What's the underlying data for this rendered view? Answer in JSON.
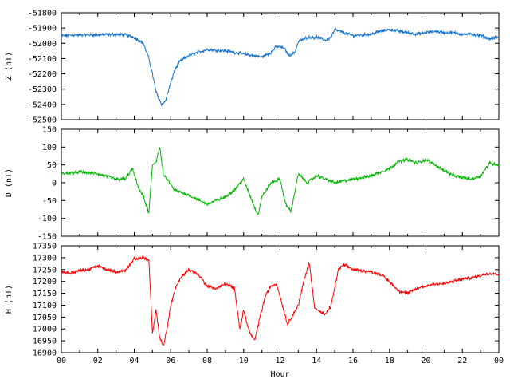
{
  "chart_data": [
    {
      "type": "line",
      "ylabel": "Z (nT)",
      "ylim": [
        -52500,
        -51800
      ],
      "yticks": [
        -51800,
        -51900,
        -52000,
        -52100,
        -52200,
        -52300,
        -52400,
        -52500
      ],
      "color": "#1874cd",
      "series": [
        {
          "x": [
            0,
            1,
            2,
            3,
            3.5,
            4,
            4.5,
            4.8,
            5.0,
            5.2,
            5.5,
            5.7,
            5.9,
            6.2,
            6.5,
            7,
            7.5,
            8,
            9,
            9.5,
            10,
            10.5,
            11,
            11.5,
            11.8,
            12.2,
            12.5,
            12.8,
            13,
            13.5,
            14,
            14.5,
            14.8,
            15,
            15.5,
            16,
            17,
            17.5,
            18,
            18.5,
            19,
            19.5,
            20,
            20.5,
            21,
            21.5,
            22,
            22.5,
            23,
            23.5,
            24
          ],
          "y": [
            -51950,
            -51945,
            -51945,
            -51940,
            -51945,
            -51960,
            -52000,
            -52100,
            -52200,
            -52320,
            -52400,
            -52380,
            -52300,
            -52180,
            -52120,
            -52080,
            -52060,
            -52040,
            -52050,
            -52060,
            -52070,
            -52080,
            -52090,
            -52060,
            -52020,
            -52030,
            -52080,
            -52060,
            -51990,
            -51960,
            -51960,
            -51980,
            -51960,
            -51910,
            -51930,
            -51950,
            -51940,
            -51920,
            -51910,
            -51920,
            -51930,
            -51940,
            -51930,
            -51920,
            -51930,
            -51930,
            -51940,
            -51940,
            -51950,
            -51970,
            -51960
          ]
        }
      ]
    },
    {
      "type": "line",
      "ylabel": "D (nT)",
      "ylim": [
        -150,
        150
      ],
      "yticks": [
        150,
        100,
        50,
        0,
        -50,
        -100,
        -150
      ],
      "color": "#00b400",
      "series": [
        {
          "x": [
            0,
            1,
            2,
            3,
            3.5,
            3.9,
            4.2,
            4.5,
            4.8,
            5.0,
            5.2,
            5.4,
            5.6,
            5.8,
            6.2,
            7,
            8,
            8.5,
            9,
            9.5,
            10,
            10.3,
            10.6,
            10.8,
            11,
            11.5,
            12,
            12.3,
            12.6,
            13,
            13.5,
            14,
            14.5,
            15,
            16,
            17,
            18,
            18.5,
            19,
            19.5,
            20,
            20.5,
            21,
            21.5,
            22,
            22.5,
            23,
            23.5,
            24
          ],
          "y": [
            25,
            30,
            25,
            10,
            10,
            40,
            -10,
            -40,
            -85,
            50,
            60,
            100,
            20,
            10,
            -20,
            -35,
            -60,
            -50,
            -40,
            -20,
            10,
            -30,
            -70,
            -90,
            -40,
            0,
            10,
            -60,
            -80,
            25,
            0,
            20,
            10,
            0,
            10,
            20,
            40,
            60,
            65,
            55,
            65,
            50,
            35,
            20,
            15,
            10,
            20,
            55,
            50
          ]
        }
      ]
    },
    {
      "type": "line",
      "ylabel": "H (nT)",
      "xlabel": "Hour",
      "ylim": [
        16900,
        17350
      ],
      "yticks": [
        17350,
        17300,
        17250,
        17200,
        17150,
        17100,
        17050,
        17000,
        16950,
        16900
      ],
      "color": "#ff0000",
      "xlim": [
        0,
        24
      ],
      "xticks": [
        "00",
        "02",
        "04",
        "06",
        "08",
        "10",
        "12",
        "14",
        "16",
        "18",
        "20",
        "22",
        "00"
      ],
      "series": [
        {
          "x": [
            0,
            0.5,
            1,
            1.5,
            2,
            2.5,
            3,
            3.5,
            4,
            4.5,
            4.8,
            5.0,
            5.2,
            5.4,
            5.6,
            5.8,
            6.0,
            6.3,
            6.6,
            7,
            7.5,
            8,
            8.5,
            9,
            9.5,
            9.8,
            10,
            10.3,
            10.6,
            10.9,
            11.2,
            11.5,
            11.8,
            12.1,
            12.4,
            12.7,
            13.0,
            13.3,
            13.6,
            13.9,
            14.2,
            14.5,
            14.8,
            15.2,
            15.5,
            16,
            17,
            17.5,
            18,
            18.5,
            19,
            19.5,
            20,
            20.5,
            21,
            21.5,
            22,
            22.5,
            23,
            23.5,
            24
          ],
          "y": [
            17240,
            17235,
            17245,
            17250,
            17265,
            17250,
            17240,
            17245,
            17295,
            17300,
            17290,
            16980,
            17080,
            16960,
            16930,
            17000,
            17100,
            17180,
            17220,
            17250,
            17230,
            17180,
            17170,
            17190,
            17170,
            17000,
            17080,
            16990,
            16950,
            17050,
            17140,
            17180,
            17190,
            17110,
            17020,
            17060,
            17100,
            17200,
            17280,
            17090,
            17070,
            17060,
            17100,
            17250,
            17270,
            17250,
            17240,
            17230,
            17200,
            17160,
            17150,
            17170,
            17180,
            17190,
            17190,
            17200,
            17210,
            17215,
            17225,
            17235,
            17230
          ]
        }
      ]
    }
  ]
}
